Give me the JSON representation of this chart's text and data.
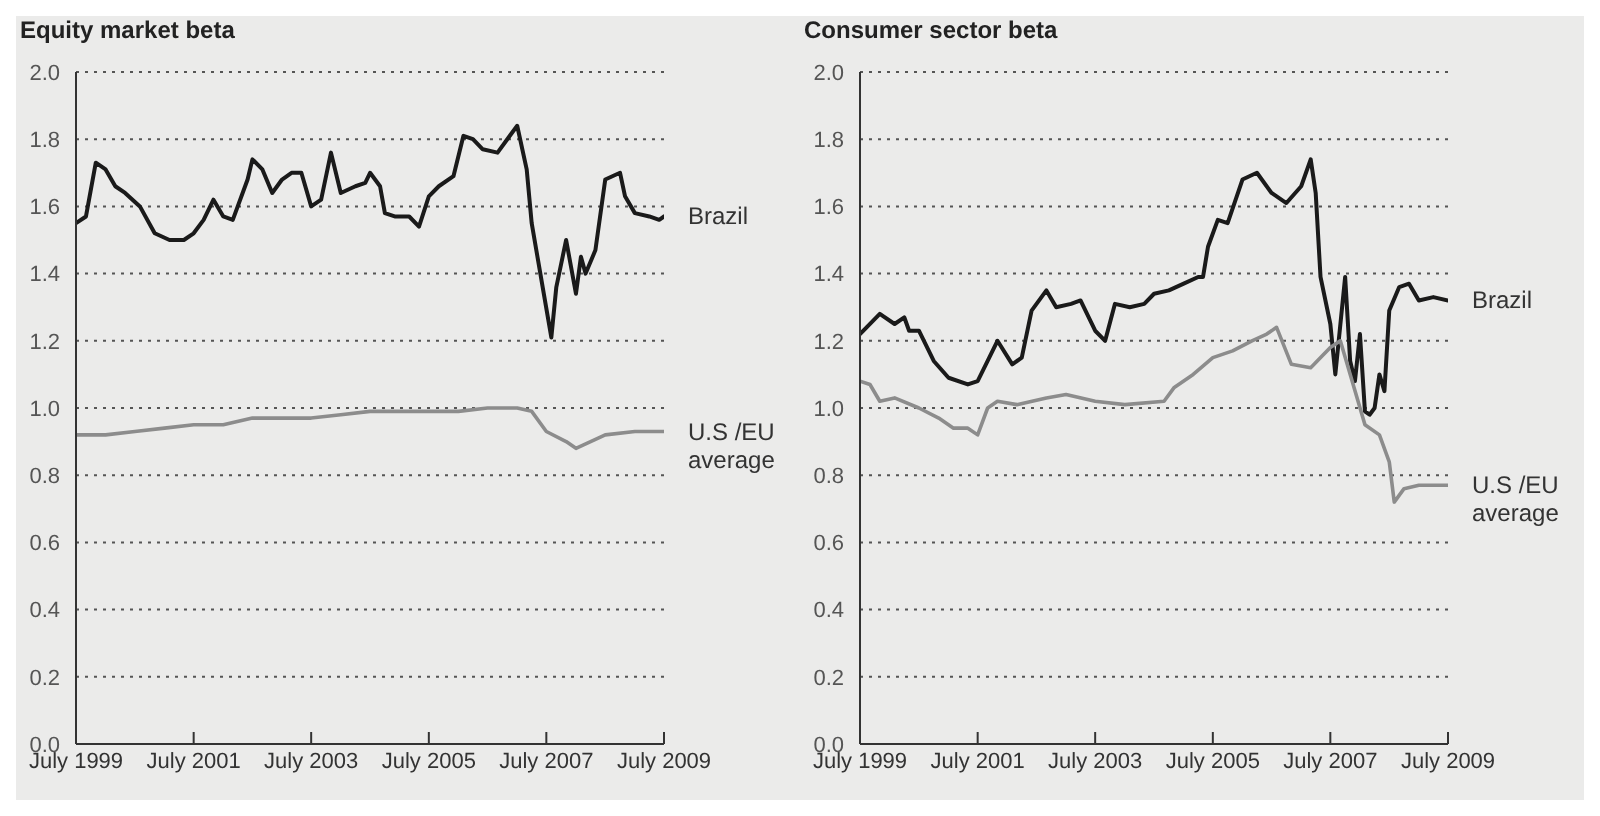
{
  "chart_data": [
    {
      "type": "line",
      "title": "Equity market beta",
      "grid": "y",
      "legend": false,
      "marker": "none",
      "line_style": "solid",
      "xlim": [
        "1999-07",
        "2009-07"
      ],
      "xticks": [
        {
          "value": "1999-07",
          "label": "July 1999"
        },
        {
          "value": "2001-07",
          "label": "July 2001"
        },
        {
          "value": "2003-07",
          "label": "July 2003"
        },
        {
          "value": "2005-07",
          "label": "July 2005"
        },
        {
          "value": "2007-07",
          "label": "July 2007"
        },
        {
          "value": "2009-07",
          "label": "July 2009"
        }
      ],
      "ylim": [
        0,
        2
      ],
      "yticks": [
        {
          "value": 0,
          "label": "0.0"
        },
        0.2,
        0.4,
        0.6,
        0.8,
        {
          "value": 1,
          "label": "1.0"
        },
        1.2,
        1.4,
        1.6,
        1.8,
        {
          "value": 2,
          "label": "2.0"
        }
      ],
      "series": [
        {
          "name": "Brazil",
          "color": "#1a1a1a",
          "x": [
            "1999-07",
            "1999-09",
            "1999-11",
            "2000-01",
            "2000-03",
            "2000-05",
            "2000-08",
            "2000-11",
            "2001-02",
            "2001-05",
            "2001-07",
            "2001-09",
            "2001-11",
            "2002-01",
            "2002-03",
            "2002-06",
            "2002-07",
            "2002-09",
            "2002-11",
            "2003-01",
            "2003-03",
            "2003-05",
            "2003-07",
            "2003-09",
            "2003-11",
            "2004-01",
            "2004-04",
            "2004-06",
            "2004-07",
            "2004-09",
            "2004-10",
            "2004-12",
            "2005-03",
            "2005-05",
            "2005-07",
            "2005-09",
            "2005-12",
            "2006-02",
            "2006-04",
            "2006-06",
            "2006-09",
            "2006-12",
            "2007-01",
            "2007-03",
            "2007-04",
            "2007-06",
            "2007-08",
            "2007-09",
            "2007-11",
            "2008-01",
            "2008-02",
            "2008-03",
            "2008-05",
            "2008-07",
            "2008-10",
            "2008-11",
            "2009-01",
            "2009-04",
            "2009-06",
            "2009-07"
          ],
          "values": [
            1.55,
            1.57,
            1.73,
            1.71,
            1.66,
            1.64,
            1.6,
            1.52,
            1.5,
            1.5,
            1.52,
            1.56,
            1.62,
            1.57,
            1.56,
            1.68,
            1.74,
            1.71,
            1.64,
            1.68,
            1.7,
            1.7,
            1.6,
            1.62,
            1.76,
            1.64,
            1.66,
            1.67,
            1.7,
            1.66,
            1.58,
            1.57,
            1.57,
            1.54,
            1.63,
            1.66,
            1.69,
            1.81,
            1.8,
            1.77,
            1.76,
            1.82,
            1.84,
            1.71,
            1.55,
            1.38,
            1.21,
            1.36,
            1.5,
            1.34,
            1.45,
            1.4,
            1.47,
            1.68,
            1.7,
            1.63,
            1.58,
            1.57,
            1.56,
            1.57
          ]
        },
        {
          "name": "U.S /EU average",
          "color": "#8c8c8c",
          "x": [
            "1999-07",
            "2000-01",
            "2000-07",
            "2001-01",
            "2001-07",
            "2002-01",
            "2002-07",
            "2003-01",
            "2003-07",
            "2004-01",
            "2004-07",
            "2005-01",
            "2005-07",
            "2006-01",
            "2006-07",
            "2007-01",
            "2007-04",
            "2007-07",
            "2007-11",
            "2008-01",
            "2008-04",
            "2008-07",
            "2009-01",
            "2009-07"
          ],
          "values": [
            0.92,
            0.92,
            0.93,
            0.94,
            0.95,
            0.95,
            0.97,
            0.97,
            0.97,
            0.98,
            0.99,
            0.99,
            0.99,
            0.99,
            1.0,
            1.0,
            0.99,
            0.93,
            0.9,
            0.88,
            0.9,
            0.92,
            0.93,
            0.93
          ]
        }
      ]
    },
    {
      "type": "line",
      "title": "Consumer sector beta",
      "grid": "y",
      "legend": false,
      "marker": "none",
      "line_style": "solid",
      "xlim": [
        "1999-07",
        "2009-07"
      ],
      "xticks": [
        {
          "value": "1999-07",
          "label": "July 1999"
        },
        {
          "value": "2001-07",
          "label": "July 2001"
        },
        {
          "value": "2003-07",
          "label": "July 2003"
        },
        {
          "value": "2005-07",
          "label": "July 2005"
        },
        {
          "value": "2007-07",
          "label": "July 2007"
        },
        {
          "value": "2009-07",
          "label": "July 2009"
        }
      ],
      "ylim": [
        0,
        2
      ],
      "yticks": [
        {
          "value": 0,
          "label": "0.0"
        },
        0.2,
        0.4,
        0.6,
        0.8,
        {
          "value": 1,
          "label": "1.0"
        },
        1.2,
        1.4,
        1.6,
        1.8,
        {
          "value": 2,
          "label": "2.0"
        }
      ],
      "series": [
        {
          "name": "Brazil",
          "color": "#1a1a1a",
          "x": [
            "1999-07",
            "1999-11",
            "2000-02",
            "2000-04",
            "2000-05",
            "2000-07",
            "2000-10",
            "2001-01",
            "2001-05",
            "2001-07",
            "2001-09",
            "2001-11",
            "2002-02",
            "2002-04",
            "2002-06",
            "2002-09",
            "2002-11",
            "2003-02",
            "2003-04",
            "2003-07",
            "2003-09",
            "2003-11",
            "2004-02",
            "2004-05",
            "2004-07",
            "2004-10",
            "2005-01",
            "2005-04",
            "2005-05",
            "2005-06",
            "2005-08",
            "2005-10",
            "2006-01",
            "2006-04",
            "2006-07",
            "2006-10",
            "2007-01",
            "2007-03",
            "2007-04",
            "2007-05",
            "2007-07",
            "2007-08",
            "2007-10",
            "2007-11",
            "2007-12",
            "2008-01",
            "2008-02",
            "2008-03",
            "2008-04",
            "2008-05",
            "2008-06",
            "2008-07",
            "2008-09",
            "2008-11",
            "2009-01",
            "2009-04",
            "2009-07"
          ],
          "values": [
            1.22,
            1.28,
            1.25,
            1.27,
            1.23,
            1.23,
            1.14,
            1.09,
            1.07,
            1.08,
            1.14,
            1.2,
            1.13,
            1.15,
            1.29,
            1.35,
            1.3,
            1.31,
            1.32,
            1.23,
            1.2,
            1.31,
            1.3,
            1.31,
            1.34,
            1.35,
            1.37,
            1.39,
            1.39,
            1.48,
            1.56,
            1.55,
            1.68,
            1.7,
            1.64,
            1.61,
            1.66,
            1.74,
            1.64,
            1.39,
            1.25,
            1.1,
            1.39,
            1.14,
            1.08,
            1.22,
            0.99,
            0.98,
            1.0,
            1.1,
            1.05,
            1.29,
            1.36,
            1.37,
            1.32,
            1.33,
            1.32
          ]
        },
        {
          "name": "U.S /EU average",
          "color": "#8c8c8c",
          "x": [
            "1999-07",
            "1999-09",
            "1999-11",
            "2000-02",
            "2000-07",
            "2000-11",
            "2001-02",
            "2001-05",
            "2001-07",
            "2001-09",
            "2001-11",
            "2002-03",
            "2002-09",
            "2003-01",
            "2003-07",
            "2004-01",
            "2004-09",
            "2004-11",
            "2005-03",
            "2005-07",
            "2005-11",
            "2006-03",
            "2006-06",
            "2006-08",
            "2006-11",
            "2007-03",
            "2007-07",
            "2007-09",
            "2008-02",
            "2008-05",
            "2008-07",
            "2008-08",
            "2008-10",
            "2009-01",
            "2009-07"
          ],
          "values": [
            1.08,
            1.07,
            1.02,
            1.03,
            1.0,
            0.97,
            0.94,
            0.94,
            0.92,
            1.0,
            1.02,
            1.01,
            1.03,
            1.04,
            1.02,
            1.01,
            1.02,
            1.06,
            1.1,
            1.15,
            1.17,
            1.2,
            1.22,
            1.24,
            1.13,
            1.12,
            1.18,
            1.2,
            0.95,
            0.92,
            0.84,
            0.72,
            0.76,
            0.77,
            0.77
          ]
        }
      ]
    }
  ]
}
